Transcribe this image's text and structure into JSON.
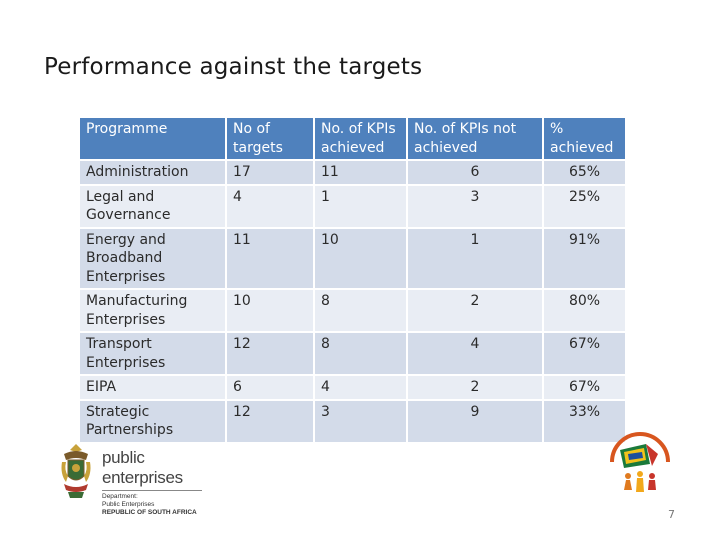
{
  "slide": {
    "title": "Performance against the targets",
    "page_number": "7"
  },
  "table": {
    "headers": {
      "programme": "Programme",
      "targets": "No of targets",
      "achieved": "No. of KPIs achieved",
      "not_achieved": "No. of KPIs not achieved",
      "pct": "% achieved"
    },
    "rows": [
      {
        "programme": "Administration",
        "targets": "17",
        "achieved": "11",
        "not_achieved": "6",
        "pct": "65%"
      },
      {
        "programme": "Legal and Governance",
        "targets": "4",
        "achieved": "1",
        "not_achieved": "3",
        "pct": "25%"
      },
      {
        "programme": "Energy and Broadband Enterprises",
        "targets": "11",
        "achieved": "10",
        "not_achieved": "1",
        "pct": "91%"
      },
      {
        "programme": "Manufacturing Enterprises",
        "targets": "10",
        "achieved": "8",
        "not_achieved": "2",
        "pct": "80%"
      },
      {
        "programme": "Transport Enterprises",
        "targets": "12",
        "achieved": "8",
        "not_achieved": "4",
        "pct": "67%"
      },
      {
        "programme": "EIPA",
        "targets": "6",
        "achieved": "4",
        "not_achieved": "2",
        "pct": "67%"
      },
      {
        "programme": "Strategic Partnerships",
        "targets": "12",
        "achieved": "3",
        "not_achieved": "9",
        "pct": "33%"
      }
    ]
  },
  "logo_left": {
    "brand": "public enterprises",
    "line1": "Department:",
    "line2": "Public Enterprises",
    "line3": "REPUBLIC OF SOUTH AFRICA"
  },
  "colors": {
    "header_bg": "#4f81bd",
    "row_light": "#e9edf4",
    "row_dark": "#d3dbe9"
  }
}
